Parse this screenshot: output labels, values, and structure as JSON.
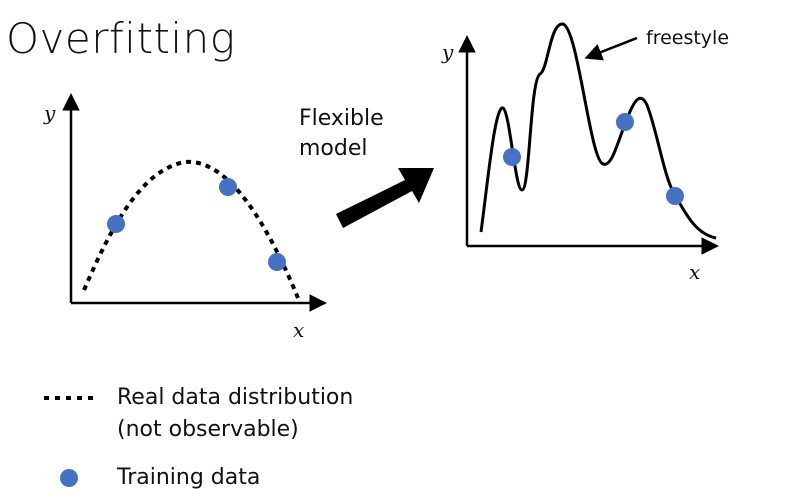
{
  "title": "Overfitting",
  "arrow_label": {
    "line1": "Flexible",
    "line2": "model"
  },
  "callout": "freestyle",
  "left_plot": {
    "y_label": "y",
    "x_label": "x"
  },
  "right_plot": {
    "y_label": "y",
    "x_label": "x"
  },
  "legend": {
    "real": {
      "line1": "Real data distribution",
      "line2": "(not observable)"
    },
    "training": "Training data"
  },
  "colors": {
    "point": "#4472c4",
    "ink": "#000000"
  },
  "icons": [
    "thick-right-arrow-icon",
    "callout-arrow-icon"
  ]
}
